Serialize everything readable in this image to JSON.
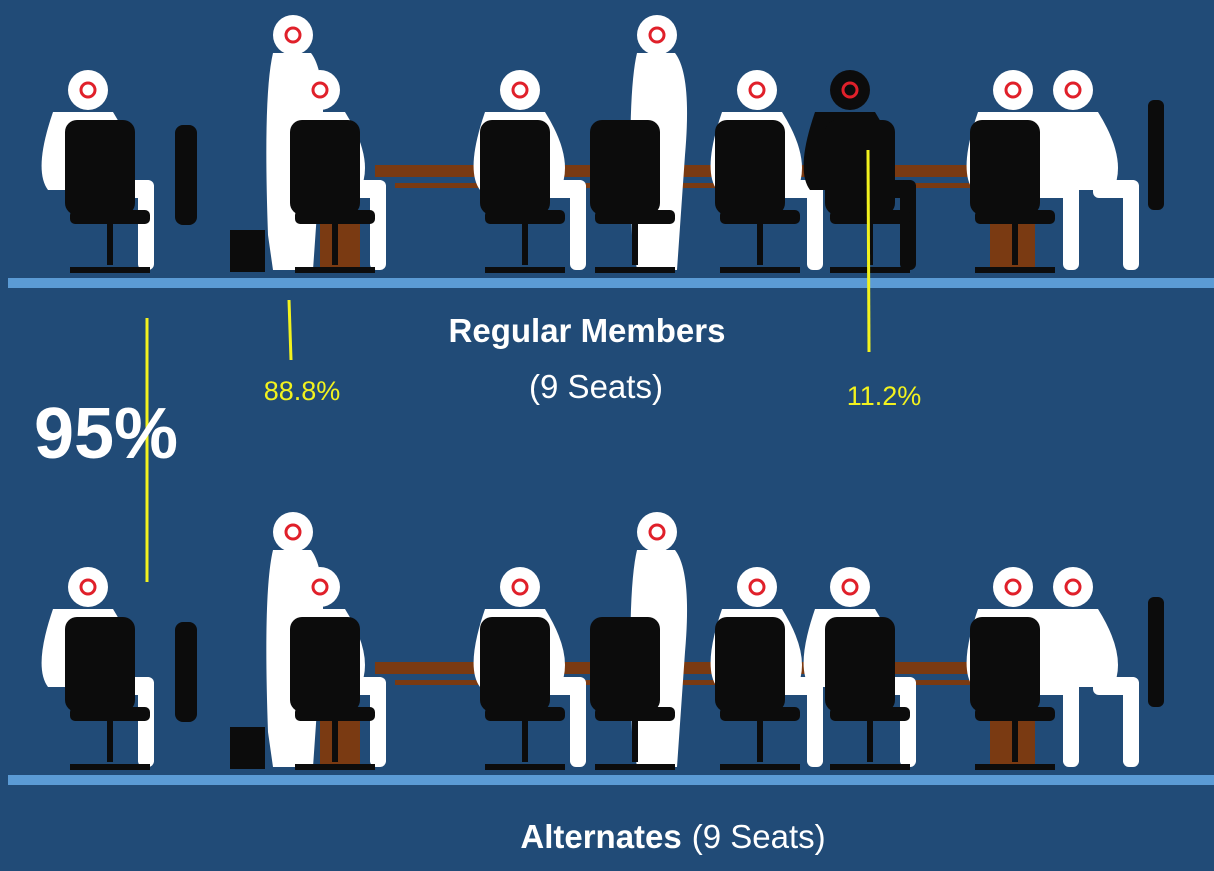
{
  "top_label": {
    "title": "Regular Members",
    "seats": "(9 Seats)"
  },
  "annotations": {
    "regular_share": "88.8%",
    "other_share": "11.2%",
    "overall": "95%"
  },
  "bottom_label": {
    "title": "Alternates",
    "seats": "(9 Seats)"
  }
}
